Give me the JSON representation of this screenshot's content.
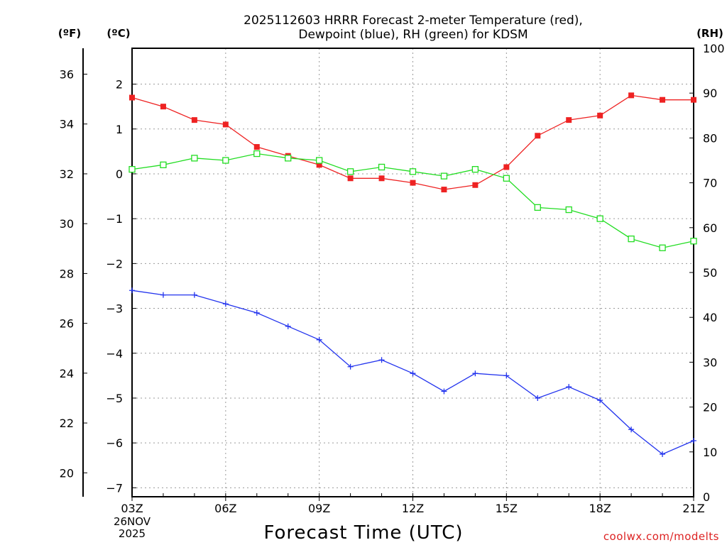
{
  "chart_data": {
    "type": "line",
    "title_line1": "2025112603 HRRR Forecast 2-meter Temperature (red),",
    "title_line2": "Dewpoint (blue), RH (green) for KDSM",
    "xlabel": "Forecast Time (UTC)",
    "date_label": [
      "26NOV",
      "2025"
    ],
    "credit": "coolwx.com/modelts",
    "units": {
      "fahrenheit": "(ºF)",
      "celsius": "(ºC)",
      "rh": "(RH)"
    },
    "x_hours": [
      3,
      4,
      5,
      6,
      7,
      8,
      9,
      10,
      11,
      12,
      13,
      14,
      15,
      16,
      17,
      18,
      19,
      20,
      21
    ],
    "x_ticks": [
      {
        "hour": 3,
        "label": "03Z"
      },
      {
        "hour": 6,
        "label": "06Z"
      },
      {
        "hour": 9,
        "label": "09Z"
      },
      {
        "hour": 12,
        "label": "12Z"
      },
      {
        "hour": 15,
        "label": "15Z"
      },
      {
        "hour": 18,
        "label": "18Z"
      },
      {
        "hour": 21,
        "label": "21Z"
      }
    ],
    "celsius_axis": {
      "range": [
        -7.2,
        2.8
      ],
      "ticks": [
        "2",
        "1",
        "0",
        "−1",
        "−2",
        "−3",
        "−4",
        "−5",
        "−6",
        "−7"
      ],
      "tick_values": [
        2,
        1,
        0,
        -1,
        -2,
        -3,
        -4,
        -5,
        -6,
        -7
      ]
    },
    "fahrenheit_axis": {
      "ticks": [
        "36",
        "34",
        "32",
        "30",
        "28",
        "26",
        "24",
        "22",
        "20"
      ],
      "tick_values": [
        36,
        34,
        32,
        30,
        28,
        26,
        24,
        22,
        20
      ]
    },
    "rh_axis": {
      "range": [
        0,
        100
      ],
      "ticks": [
        "100",
        "90",
        "80",
        "70",
        "60",
        "50",
        "40",
        "30",
        "20",
        "10",
        "0"
      ],
      "tick_values": [
        100,
        90,
        80,
        70,
        60,
        50,
        40,
        30,
        20,
        10,
        0
      ]
    },
    "series": [
      {
        "name": "Temperature",
        "axis": "celsius",
        "color": "#ee2222",
        "marker": "filled-square",
        "values": [
          1.7,
          1.5,
          1.2,
          1.1,
          0.6,
          0.4,
          0.2,
          -0.1,
          -0.1,
          -0.2,
          -0.35,
          -0.25,
          0.15,
          0.85,
          1.2,
          1.3,
          1.75,
          1.65,
          1.65
        ]
      },
      {
        "name": "Dewpoint",
        "axis": "celsius",
        "color": "#2233ee",
        "marker": "plus",
        "values": [
          -2.6,
          -2.7,
          -2.7,
          -2.9,
          -3.1,
          -3.4,
          -3.7,
          -4.3,
          -4.15,
          -4.45,
          -4.85,
          -4.45,
          -4.5,
          -5.0,
          -4.75,
          -5.05,
          -5.7,
          -6.25,
          -5.95
        ]
      },
      {
        "name": "RH",
        "axis": "rh",
        "color": "#22dd22",
        "marker": "open-square",
        "values": [
          73,
          74,
          75.5,
          75,
          76.5,
          75.5,
          75,
          72.5,
          73.5,
          72.5,
          71.5,
          73,
          71,
          64.5,
          64,
          62,
          57.5,
          55.5,
          57
        ]
      }
    ]
  }
}
